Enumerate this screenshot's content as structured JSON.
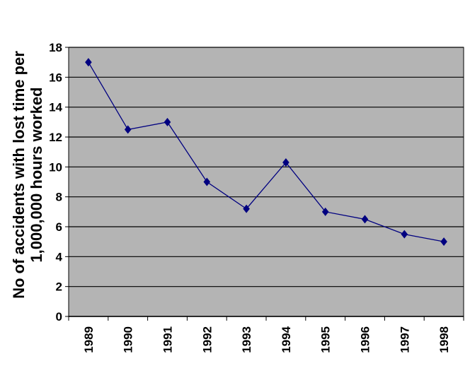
{
  "chart_data": {
    "type": "line",
    "y_label": [
      "No of accidents with lost time per",
      "1,000,000 hours worked"
    ],
    "categories": [
      "1989",
      "1990",
      "1991",
      "1992",
      "1993",
      "1994",
      "1995",
      "1996",
      "1997",
      "1998"
    ],
    "values": [
      17,
      12.5,
      13,
      9,
      7.2,
      10.3,
      7,
      6.5,
      5.5,
      5
    ],
    "color": "#000080",
    "plot_background": "#b4b4b4",
    "ylim": [
      0,
      18
    ],
    "yticks": [
      0,
      2,
      4,
      6,
      8,
      10,
      12,
      14,
      16,
      18
    ],
    "grid": true
  }
}
